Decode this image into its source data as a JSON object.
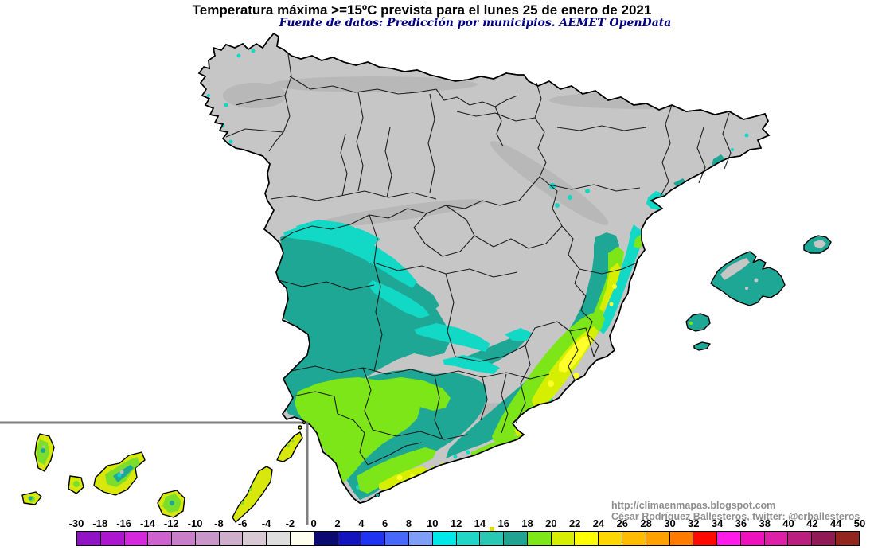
{
  "title": "Temperatura máxima >=15ºC prevista para el lunes 25 de enero de 2021",
  "title_color": "#000000",
  "subtitle": "Fuente de datos: Predicción por municipios. AEMET OpenData",
  "subtitle_color": "#000080",
  "attribution": {
    "url": "http://climaenmapas.blogspot.com",
    "author": "César Rodríguez Ballesteros, twitter: @crballesteros",
    "color": "#8f8f8f"
  },
  "legend": {
    "labels": [
      "-30",
      "-18",
      "-16",
      "-14",
      "-12",
      "-10",
      "-8",
      "-6",
      "-4",
      "-2",
      "0",
      "2",
      "4",
      "6",
      "8",
      "10",
      "12",
      "14",
      "16",
      "18",
      "20",
      "22",
      "24",
      "26",
      "28",
      "30",
      "32",
      "34",
      "36",
      "38",
      "40",
      "42",
      "44",
      "50"
    ],
    "cells": [
      "#9013C6",
      "#AC16CE",
      "#D428DC",
      "#CE62CE",
      "#C87EC8",
      "#C996C9",
      "#CDAECB",
      "#D9C9D4",
      "#DEDEDE",
      "#FFFFF0",
      "#0A0A70",
      "#1414BE",
      "#2033F2",
      "#4868FA",
      "#7E9EF8",
      "#00E9E9",
      "#22D6C6",
      "#2BC7B5",
      "#21A392",
      "#7DE719",
      "#D6EE00",
      "#FFFF00",
      "#FFD700",
      "#FFBC00",
      "#FFA200",
      "#FF7C00",
      "#FF0A00",
      "#FF1CE8",
      "#ED12BC",
      "#DC20A8",
      "#BA1F80",
      "#8F1A56",
      "#93251F"
    ],
    "label_color": "#000000",
    "threshold_marker": {
      "value": 15,
      "color": "#DCDC00"
    }
  },
  "map": {
    "sea": "#FFFFFF",
    "land": "#C6C6C6",
    "border": "#000000",
    "inset_border": "#7E7E7E",
    "temps": {
      "c14_16": "#12D8C6",
      "c16_18": "#1FA796",
      "c18_20": "#7CE619",
      "c20_22": "#D6EE00",
      "c22_24": "#FFFF2A",
      "canary_green": "#7CDE2C",
      "canary_yellowgreen": "#D8E80C",
      "summit_gray": "#BEBEBE"
    }
  }
}
